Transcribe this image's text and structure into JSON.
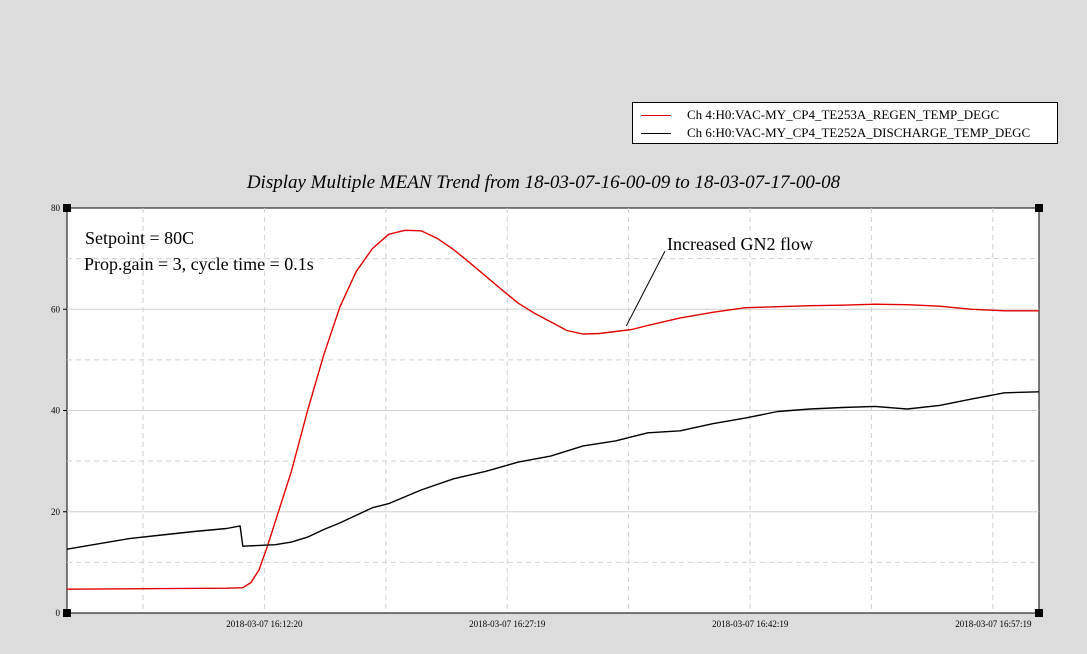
{
  "legend": {
    "items": [
      {
        "label": "Ch 4:H0:VAC-MY_CP4_TE253A_REGEN_TEMP_DEGC",
        "color": "#e00000"
      },
      {
        "label": "Ch 6:H0:VAC-MY_CP4_TE252A_DISCHARGE_TEMP_DEGC",
        "color": "#000000"
      }
    ]
  },
  "chart_data": {
    "type": "line",
    "title": "Display Multiple MEAN Trend from 18-03-07-16-00-09 to 18-03-07-17-00-08",
    "xlabel": "",
    "ylabel": "",
    "xlim": [
      "2018-03-07 16:00:09",
      "2018-03-07 17:00:08"
    ],
    "ylim": [
      0,
      80
    ],
    "y_ticks": [
      0,
      20,
      40,
      60,
      80
    ],
    "x_ticks": [
      "2018-03-07 16:12:20",
      "2018-03-07 16:27:19",
      "2018-03-07 16:42:19",
      "2018-03-07 16:57:19"
    ],
    "grid": true,
    "legend_position": "top-right",
    "annotations": [
      {
        "text": "Setpoint = 80C"
      },
      {
        "text": "Prop.gain = 3, cycle time = 0.1s"
      },
      {
        "text": "Increased GN2 flow",
        "points_to": {
          "x": "2018-03-07 16:34:40",
          "y": 56.7
        }
      }
    ],
    "series": [
      {
        "name": "Ch 4:H0:VAC-MY_CP4_TE253A_REGEN_TEMP_DEGC",
        "color": "#e00000",
        "points": [
          [
            "2018-03-07 16:00:09",
            4.7
          ],
          [
            "2018-03-07 16:05:00",
            4.8
          ],
          [
            "2018-03-07 16:10:00",
            4.9
          ],
          [
            "2018-03-07 16:11:00",
            5.0
          ],
          [
            "2018-03-07 16:11:30",
            6.0
          ],
          [
            "2018-03-07 16:12:00",
            8.5
          ],
          [
            "2018-03-07 16:12:30",
            13.0
          ],
          [
            "2018-03-07 16:13:00",
            18.0
          ],
          [
            "2018-03-07 16:14:00",
            28.0
          ],
          [
            "2018-03-07 16:15:00",
            40.0
          ],
          [
            "2018-03-07 16:16:00",
            51.0
          ],
          [
            "2018-03-07 16:17:00",
            60.5
          ],
          [
            "2018-03-07 16:18:00",
            67.5
          ],
          [
            "2018-03-07 16:19:00",
            72.0
          ],
          [
            "2018-03-07 16:20:00",
            74.8
          ],
          [
            "2018-03-07 16:21:00",
            75.6
          ],
          [
            "2018-03-07 16:22:00",
            75.5
          ],
          [
            "2018-03-07 16:23:00",
            74.0
          ],
          [
            "2018-03-07 16:24:00",
            71.8
          ],
          [
            "2018-03-07 16:25:00",
            69.2
          ],
          [
            "2018-03-07 16:26:00",
            66.5
          ],
          [
            "2018-03-07 16:27:00",
            63.8
          ],
          [
            "2018-03-07 16:28:00",
            61.2
          ],
          [
            "2018-03-07 16:29:00",
            59.2
          ],
          [
            "2018-03-07 16:30:00",
            57.5
          ],
          [
            "2018-03-07 16:31:00",
            55.8
          ],
          [
            "2018-03-07 16:32:00",
            55.1
          ],
          [
            "2018-03-07 16:33:00",
            55.2
          ],
          [
            "2018-03-07 16:34:00",
            55.6
          ],
          [
            "2018-03-07 16:35:00",
            56.0
          ],
          [
            "2018-03-07 16:36:00",
            56.8
          ],
          [
            "2018-03-07 16:38:00",
            58.3
          ],
          [
            "2018-03-07 16:40:00",
            59.4
          ],
          [
            "2018-03-07 16:42:00",
            60.3
          ],
          [
            "2018-03-07 16:44:00",
            60.5
          ],
          [
            "2018-03-07 16:46:00",
            60.7
          ],
          [
            "2018-03-07 16:48:00",
            60.8
          ],
          [
            "2018-03-07 16:50:00",
            61.0
          ],
          [
            "2018-03-07 16:52:00",
            60.9
          ],
          [
            "2018-03-07 16:54:00",
            60.6
          ],
          [
            "2018-03-07 16:56:00",
            60.0
          ],
          [
            "2018-03-07 16:58:00",
            59.7
          ],
          [
            "2018-03-07 17:00:08",
            59.7
          ]
        ]
      },
      {
        "name": "Ch 6:H0:VAC-MY_CP4_TE252A_DISCHARGE_TEMP_DEGC",
        "color": "#000000",
        "points": [
          [
            "2018-03-07 16:00:09",
            12.6
          ],
          [
            "2018-03-07 16:02:00",
            13.6
          ],
          [
            "2018-03-07 16:04:00",
            14.7
          ],
          [
            "2018-03-07 16:06:00",
            15.4
          ],
          [
            "2018-03-07 16:08:00",
            16.1
          ],
          [
            "2018-03-07 16:10:00",
            16.7
          ],
          [
            "2018-03-07 16:10:50",
            17.2
          ],
          [
            "2018-03-07 16:11:00",
            13.2
          ],
          [
            "2018-03-07 16:13:00",
            13.5
          ],
          [
            "2018-03-07 16:14:00",
            14.0
          ],
          [
            "2018-03-07 16:15:00",
            15.0
          ],
          [
            "2018-03-07 16:16:00",
            16.5
          ],
          [
            "2018-03-07 16:17:00",
            17.8
          ],
          [
            "2018-03-07 16:18:00",
            19.3
          ],
          [
            "2018-03-07 16:19:00",
            20.8
          ],
          [
            "2018-03-07 16:20:00",
            21.6
          ],
          [
            "2018-03-07 16:22:00",
            24.3
          ],
          [
            "2018-03-07 16:24:00",
            26.5
          ],
          [
            "2018-03-07 16:26:00",
            28.0
          ],
          [
            "2018-03-07 16:28:00",
            29.8
          ],
          [
            "2018-03-07 16:30:00",
            31.0
          ],
          [
            "2018-03-07 16:32:00",
            33.0
          ],
          [
            "2018-03-07 16:34:00",
            34.0
          ],
          [
            "2018-03-07 16:36:00",
            35.6
          ],
          [
            "2018-03-07 16:38:00",
            36.0
          ],
          [
            "2018-03-07 16:40:00",
            37.4
          ],
          [
            "2018-03-07 16:42:00",
            38.5
          ],
          [
            "2018-03-07 16:44:00",
            39.8
          ],
          [
            "2018-03-07 16:46:00",
            40.3
          ],
          [
            "2018-03-07 16:48:00",
            40.6
          ],
          [
            "2018-03-07 16:50:00",
            40.8
          ],
          [
            "2018-03-07 16:52:00",
            40.3
          ],
          [
            "2018-03-07 16:54:00",
            41.0
          ],
          [
            "2018-03-07 16:56:00",
            42.3
          ],
          [
            "2018-03-07 16:58:00",
            43.5
          ],
          [
            "2018-03-07 17:00:08",
            43.7
          ]
        ]
      }
    ]
  }
}
